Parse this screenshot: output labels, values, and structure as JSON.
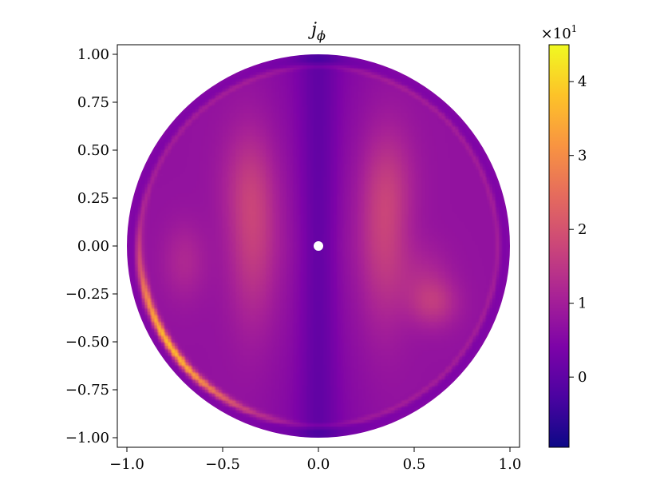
{
  "chart_data": {
    "type": "heatmap",
    "title": "j_ϕ",
    "title_main": "j",
    "title_sub": "ϕ",
    "xlabel": "",
    "ylabel": "",
    "xlim": [
      -1.05,
      1.05
    ],
    "ylim": [
      -1.05,
      1.05
    ],
    "x_ticks": [
      -1.0,
      -0.5,
      0.0,
      0.5,
      1.0
    ],
    "x_tick_labels": [
      "−1.0",
      "−0.5",
      "0.0",
      "0.5",
      "1.0"
    ],
    "y_ticks": [
      1.0,
      0.75,
      0.5,
      0.25,
      0.0,
      -0.25,
      -0.5,
      -0.75,
      -1.0
    ],
    "y_tick_labels": [
      "1.00",
      "0.75",
      "0.50",
      "0.25",
      "0.00",
      "−0.25",
      "−0.50",
      "−0.75",
      "−1.00"
    ],
    "grid": false,
    "colormap": "plasma",
    "colorbar": {
      "min": -0.95,
      "max": 4.5,
      "scale_label": "×10",
      "scale_exponent": "1",
      "ticks": [
        0,
        1,
        2,
        3,
        4
      ],
      "tick_labels": [
        "0",
        "1",
        "2",
        "3",
        "4"
      ]
    },
    "domain": {
      "shape": "disk",
      "radius": 1.0,
      "center_marker": [
        0.0,
        0.0
      ]
    },
    "field_features": [
      {
        "name": "left lobe",
        "x": -0.35,
        "y": 0.0,
        "value": 1.6
      },
      {
        "name": "right lobe",
        "x": 0.35,
        "y": 0.0,
        "value": 1.6
      },
      {
        "name": "left outer lobe",
        "x": -0.72,
        "y": -0.08,
        "value": 1.2
      },
      {
        "name": "right outer lobe",
        "x": 0.6,
        "y": -0.28,
        "value": 1.6
      },
      {
        "name": "outer ring",
        "r": 0.935,
        "value": 1.0
      },
      {
        "name": "lower-left rim maximum",
        "x": -0.85,
        "y": -0.5,
        "value": 3.5
      },
      {
        "name": "axis minimum",
        "x": 0.0,
        "y": 0.0,
        "value": 0.1
      }
    ],
    "background_value": 0.75
  }
}
